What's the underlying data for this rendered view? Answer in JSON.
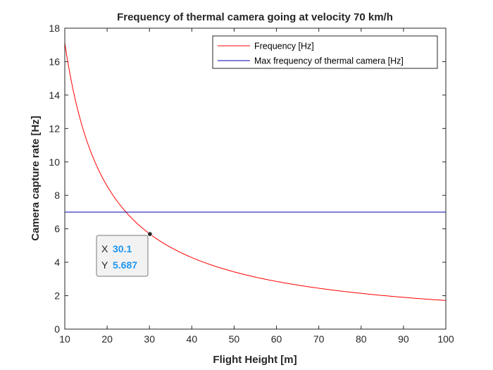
{
  "chart_data": {
    "type": "line",
    "title": "Frequency of thermal camera going at velocity 70 km/h",
    "xlabel": "Flight Height [m]",
    "ylabel": "Camera capture rate [Hz]",
    "xlim": [
      10,
      100
    ],
    "ylim": [
      0,
      18
    ],
    "xticks": [
      10,
      20,
      30,
      40,
      50,
      60,
      70,
      80,
      90,
      100
    ],
    "yticks": [
      0,
      2,
      4,
      6,
      8,
      10,
      12,
      14,
      16,
      18
    ],
    "grid": false,
    "legend_position": "top-right",
    "series": [
      {
        "name": "Frequency [Hz]",
        "color": "#ff0000",
        "x": [
          10,
          12,
          14,
          16,
          18,
          20,
          22,
          24,
          26,
          28,
          30,
          35,
          40,
          45,
          50,
          55,
          60,
          65,
          70,
          75,
          80,
          85,
          90,
          95,
          100
        ],
        "y": [
          17.12,
          14.27,
          12.23,
          10.7,
          9.51,
          8.56,
          7.78,
          7.13,
          6.58,
          6.11,
          5.71,
          4.89,
          4.28,
          3.8,
          3.42,
          3.11,
          2.85,
          2.63,
          2.45,
          2.28,
          2.14,
          2.01,
          1.9,
          1.8,
          1.71
        ]
      },
      {
        "name": "Max frequency of thermal camera [Hz]",
        "color": "#0000b0",
        "x": [
          10,
          100
        ],
        "y": [
          7,
          7
        ]
      }
    ],
    "datatip": {
      "x_key": "X",
      "x_value": "30.1",
      "y_key": "Y",
      "y_value": "5.687",
      "point": [
        30.1,
        5.687
      ]
    }
  }
}
